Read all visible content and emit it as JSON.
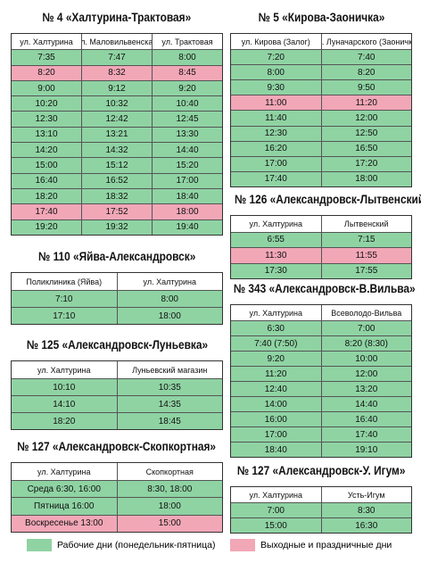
{
  "tables": [
    {
      "title": "№ 4 «Халтурина-Трактовая»",
      "headers": [
        "ул. Халтурина",
        "ул. Маловильвенская",
        "ул. Трактовая"
      ],
      "rows": [
        [
          "7:35",
          "7:47",
          "8:00"
        ],
        [
          "8:20",
          "8:32",
          "8:45"
        ],
        [
          "9:00",
          "9:12",
          "9:20"
        ],
        [
          "10:20",
          "10:32",
          "10:40"
        ],
        [
          "12:30",
          "12:42",
          "12:45"
        ],
        [
          "13:10",
          "13:21",
          "13:30"
        ],
        [
          "14:20",
          "14:32",
          "14:40"
        ],
        [
          "15:00",
          "15:12",
          "15:20"
        ],
        [
          "16:40",
          "16:52",
          "17:00"
        ],
        [
          "18:20",
          "18:32",
          "18:40"
        ],
        [
          "17:40",
          "17:52",
          "18:00"
        ],
        [
          "19:20",
          "19:32",
          "19:40"
        ]
      ],
      "row_colors": [
        "#8fd3a3",
        "#f2a7b7",
        "#8fd3a3",
        "#8fd3a3",
        "#8fd3a3",
        "#8fd3a3",
        "#8fd3a3",
        "#8fd3a3",
        "#8fd3a3",
        "#8fd3a3",
        "#f2a7b7",
        "#8fd3a3"
      ]
    },
    {
      "title": "№ 5 «Кирова-Заоничка»",
      "headers": [
        "ул. Кирова (Залог)",
        "ул. Луначарского (Заоничка)"
      ],
      "rows": [
        [
          "7:20",
          "7:40"
        ],
        [
          "8:00",
          "8:20"
        ],
        [
          "9:30",
          "9:50"
        ],
        [
          "11:00",
          "11:20"
        ],
        [
          "11:40",
          "12:00"
        ],
        [
          "12:30",
          "12:50"
        ],
        [
          "16:20",
          "16:50"
        ],
        [
          "17:00",
          "17:20"
        ],
        [
          "17:40",
          "18:00"
        ]
      ],
      "row_colors": [
        "#8fd3a3",
        "#8fd3a3",
        "#8fd3a3",
        "#f2a7b7",
        "#8fd3a3",
        "#8fd3a3",
        "#8fd3a3",
        "#8fd3a3",
        "#8fd3a3"
      ]
    },
    {
      "title": "№ 126 «Александровск-Лытвенский»",
      "headers": [
        "ул. Халтурина",
        "Лытвенский"
      ],
      "rows": [
        [
          "6:55",
          "7:15"
        ],
        [
          "11:30",
          "11:55"
        ],
        [
          "17:30",
          "17:55"
        ]
      ],
      "row_colors": [
        "#8fd3a3",
        "#f2a7b7",
        "#8fd3a3"
      ]
    },
    {
      "title": "№ 110 «Яйва-Александровск»",
      "headers": [
        "Поликлиника (Яйва)",
        "ул. Халтурина"
      ],
      "rows": [
        [
          "7:10",
          "8:00"
        ],
        [
          "17:10",
          "18:00"
        ]
      ],
      "row_colors": [
        "#8fd3a3",
        "#8fd3a3"
      ]
    },
    {
      "title": "№ 343 «Александровск-В.Вильва»",
      "headers": [
        "ул. Халтурина",
        "Всеволодо-Вильва"
      ],
      "rows": [
        [
          "6:30",
          "7:00"
        ],
        [
          "7:40 (7:50)",
          "8:20 (8:30)"
        ],
        [
          "9:20",
          "10:00"
        ],
        [
          "11:20",
          "12:00"
        ],
        [
          "12:40",
          "13:20"
        ],
        [
          "14:00",
          "14:40"
        ],
        [
          "16:00",
          "16:40"
        ],
        [
          "17:00",
          "17:40"
        ],
        [
          "18:40",
          "19:10"
        ]
      ],
      "row_colors": [
        "#8fd3a3",
        "#8fd3a3",
        "#8fd3a3",
        "#8fd3a3",
        "#8fd3a3",
        "#8fd3a3",
        "#8fd3a3",
        "#8fd3a3",
        "#8fd3a3"
      ]
    },
    {
      "title": "№ 125 «Александровск-Луньевка»",
      "headers": [
        "ул. Халтурина",
        "Луньевский магазин"
      ],
      "rows": [
        [
          "10:10",
          "10:35"
        ],
        [
          "14:10",
          "14:35"
        ],
        [
          "18:20",
          "18:45"
        ]
      ],
      "row_colors": [
        "#8fd3a3",
        "#8fd3a3",
        "#8fd3a3"
      ]
    },
    {
      "title": "№ 127 «Александровск-Скопкортная»",
      "headers": [
        "ул. Халтурина",
        "Скопкортная"
      ],
      "rows": [
        [
          "Среда 6:30, 16:00",
          "8:30, 18:00"
        ],
        [
          "Пятница 16:00",
          "18:00"
        ],
        [
          "Воскресенье 13:00",
          "15:00"
        ]
      ],
      "row_colors": [
        "#8fd3a3",
        "#8fd3a3",
        "#f2a7b7"
      ]
    },
    {
      "title": "№ 127 «Александровск-У. Игум»",
      "headers": [
        "ул. Халтурина",
        "Усть-Игум"
      ],
      "rows": [
        [
          "7:00",
          "8:30"
        ],
        [
          "15:00",
          "16:30"
        ]
      ],
      "row_colors": [
        "#8fd3a3",
        "#8fd3a3"
      ]
    }
  ],
  "legend": [
    {
      "label": "Рабочие дни (понедельник-пятница)",
      "color": "#8fd3a3"
    },
    {
      "label": "Выходные и праздничные дни",
      "color": "#f2a7b7"
    }
  ]
}
